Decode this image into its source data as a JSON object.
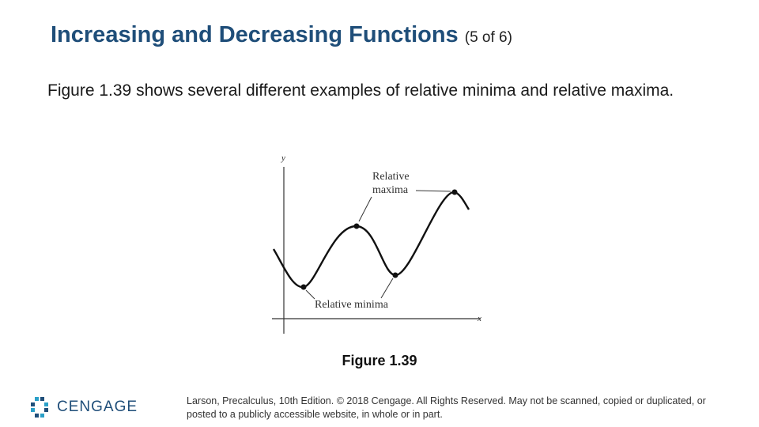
{
  "slide": {
    "title": "Increasing and Decreasing Functions",
    "title_suffix": "(5 of 6)",
    "body": "Figure 1.39 shows several different examples of relative minima and relative maxima.",
    "caption": "Figure 1.39"
  },
  "figure": {
    "y_axis_label": "y",
    "x_axis_label": "x",
    "maxima_label_line1": "Relative",
    "maxima_label_line2": "maxima",
    "minima_label": "Relative minima"
  },
  "footer": {
    "brand": "CENGAGE",
    "copyright": "Larson, Precalculus, 10th Edition. © 2018 Cengage. All Rights Reserved. May not be scanned, copied or duplicated, or posted to a publicly accessible website, in whole or in part."
  },
  "colors": {
    "title": "#1f4e79",
    "logo_blue": "#1f4e79",
    "logo_teal": "#2aa0c8"
  }
}
